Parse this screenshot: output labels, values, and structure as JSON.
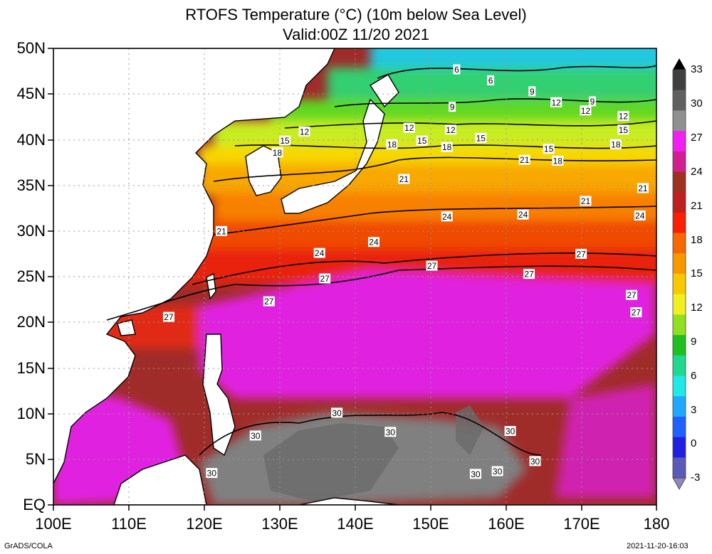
{
  "title": {
    "line1": "RTOFS Temperature (°C) (10m below Sea Level)",
    "line2": "Valid:00Z 11/20 2021"
  },
  "axes": {
    "lon_ticks": [
      "100E",
      "110E",
      "120E",
      "130E",
      "140E",
      "150E",
      "160E",
      "170E",
      "180"
    ],
    "lat_ticks": [
      "EQ",
      "5N",
      "10N",
      "15N",
      "20N",
      "25N",
      "30N",
      "35N",
      "40N",
      "45N",
      "50N"
    ],
    "lon_range": [
      100,
      180
    ],
    "lat_range": [
      0,
      50
    ],
    "grid": "dotted"
  },
  "colorbar": {
    "labels": [
      "-3",
      "0",
      "3",
      "6",
      "9",
      "12",
      "15",
      "18",
      "21",
      "24",
      "27",
      "30",
      "33"
    ],
    "colors": [
      "#5a5ab8",
      "#2020e0",
      "#2060ff",
      "#20a8ff",
      "#20e8e8",
      "#20d890",
      "#20c020",
      "#90e020",
      "#f0f020",
      "#f8c800",
      "#f89800",
      "#f86800",
      "#f82000",
      "#c02020",
      "#a03020",
      "#d02090",
      "#f020f0",
      "#909090",
      "#606060",
      "#404040"
    ]
  },
  "contour_labels": [
    {
      "text": "6",
      "lon": 153.5,
      "lat": 47.7
    },
    {
      "text": "6",
      "lon": 158,
      "lat": 46.5
    },
    {
      "text": "9",
      "lon": 152.9,
      "lat": 43.6
    },
    {
      "text": "9",
      "lon": 163.5,
      "lat": 45.3
    },
    {
      "text": "9",
      "lon": 171.5,
      "lat": 44.2
    },
    {
      "text": "12",
      "lon": 133.3,
      "lat": 40.9
    },
    {
      "text": "12",
      "lon": 147.2,
      "lat": 41.3
    },
    {
      "text": "12",
      "lon": 152.7,
      "lat": 41.1
    },
    {
      "text": "12",
      "lon": 166.7,
      "lat": 44.1
    },
    {
      "text": "12",
      "lon": 170.6,
      "lat": 43.2
    },
    {
      "text": "12",
      "lon": 175.6,
      "lat": 42.6
    },
    {
      "text": "15",
      "lon": 130.7,
      "lat": 39.9
    },
    {
      "text": "15",
      "lon": 148.9,
      "lat": 39.9
    },
    {
      "text": "15",
      "lon": 156.7,
      "lat": 40.2
    },
    {
      "text": "15",
      "lon": 165.7,
      "lat": 39.0
    },
    {
      "text": "15",
      "lon": 175.6,
      "lat": 41.1
    },
    {
      "text": "18",
      "lon": 129.7,
      "lat": 38.6
    },
    {
      "text": "18",
      "lon": 144.9,
      "lat": 39.5
    },
    {
      "text": "18",
      "lon": 152.2,
      "lat": 39.2
    },
    {
      "text": "18",
      "lon": 166.9,
      "lat": 37.7
    },
    {
      "text": "18",
      "lon": 174.6,
      "lat": 39.5
    },
    {
      "text": "21",
      "lon": 122.3,
      "lat": 30.0
    },
    {
      "text": "21",
      "lon": 146.5,
      "lat": 35.7
    },
    {
      "text": "21",
      "lon": 162.5,
      "lat": 37.8
    },
    {
      "text": "21",
      "lon": 170.6,
      "lat": 33.3
    },
    {
      "text": "21",
      "lon": 178.2,
      "lat": 34.7
    },
    {
      "text": "24",
      "lon": 135.3,
      "lat": 27.6
    },
    {
      "text": "24",
      "lon": 142.5,
      "lat": 28.8
    },
    {
      "text": "24",
      "lon": 152.2,
      "lat": 31.6
    },
    {
      "text": "24",
      "lon": 162.3,
      "lat": 31.8
    },
    {
      "text": "24",
      "lon": 177.8,
      "lat": 31.7
    },
    {
      "text": "27",
      "lon": 115.3,
      "lat": 20.6
    },
    {
      "text": "27",
      "lon": 128.6,
      "lat": 22.3
    },
    {
      "text": "27",
      "lon": 136.0,
      "lat": 24.8
    },
    {
      "text": "27",
      "lon": 150.2,
      "lat": 26.2
    },
    {
      "text": "27",
      "lon": 163.1,
      "lat": 25.3
    },
    {
      "text": "27",
      "lon": 170.0,
      "lat": 27.5
    },
    {
      "text": "27",
      "lon": 176.7,
      "lat": 23.0
    },
    {
      "text": "27",
      "lon": 177.3,
      "lat": 21.1
    },
    {
      "text": "30",
      "lon": 126.8,
      "lat": 7.6
    },
    {
      "text": "30",
      "lon": 121.0,
      "lat": 3.5
    },
    {
      "text": "30",
      "lon": 137.6,
      "lat": 10.1
    },
    {
      "text": "30",
      "lon": 144.7,
      "lat": 8.0
    },
    {
      "text": "30",
      "lon": 160.6,
      "lat": 8.1
    },
    {
      "text": "30",
      "lon": 156.0,
      "lat": 3.4
    },
    {
      "text": "30",
      "lon": 158.9,
      "lat": 3.7
    },
    {
      "text": "30",
      "lon": 163.9,
      "lat": 4.8
    }
  ],
  "footer": {
    "left": "GrADS/COLA",
    "right": "2021-11-20-16:03"
  }
}
